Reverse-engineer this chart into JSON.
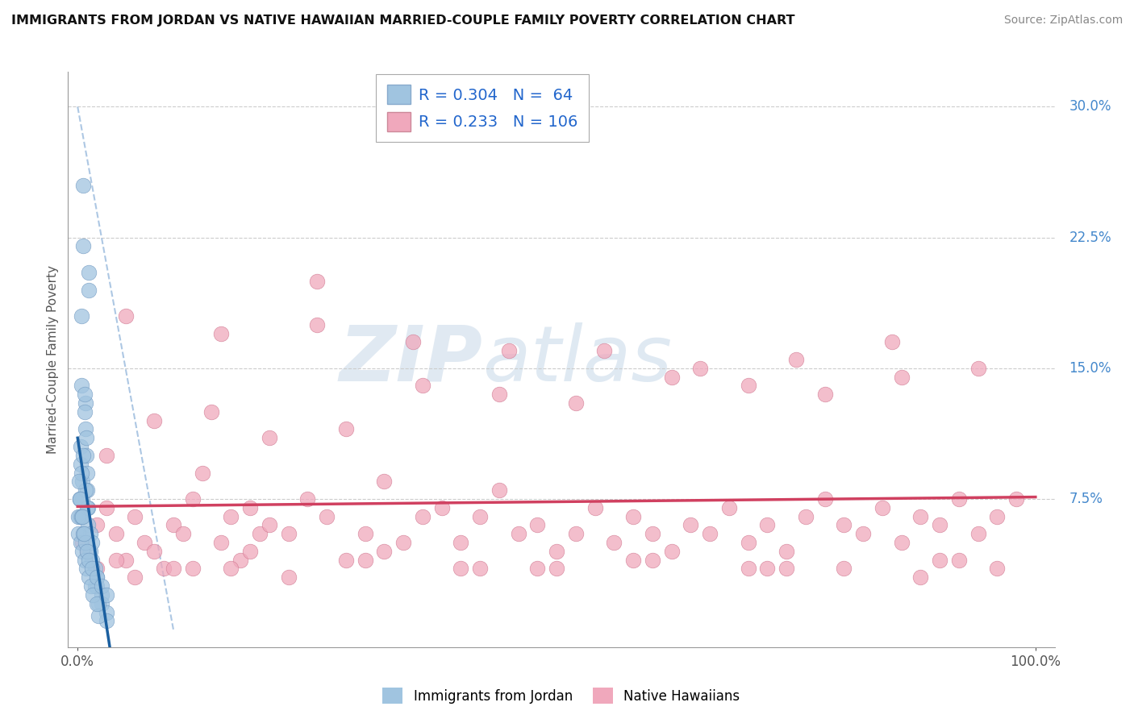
{
  "title": "IMMIGRANTS FROM JORDAN VS NATIVE HAWAIIAN MARRIED-COUPLE FAMILY POVERTY CORRELATION CHART",
  "source": "Source: ZipAtlas.com",
  "ylabel": "Married-Couple Family Poverty",
  "blue_R": 0.304,
  "blue_N": 64,
  "pink_R": 0.233,
  "pink_N": 106,
  "blue_color": "#a0c4e0",
  "pink_color": "#f0a8bc",
  "blue_edge_color": "#7098c0",
  "pink_edge_color": "#d07890",
  "blue_line_color": "#1a5fa0",
  "pink_line_color": "#d04060",
  "watermark_zip": "ZIP",
  "watermark_atlas": "atlas",
  "blue_scatter_x": [
    0.6,
    0.6,
    1.2,
    1.2,
    0.4,
    0.4,
    0.8,
    0.8,
    0.3,
    0.3,
    0.5,
    0.5,
    0.7,
    0.7,
    0.9,
    0.9,
    1.0,
    1.0,
    1.1,
    1.1,
    0.2,
    0.2,
    1.3,
    1.3,
    0.6,
    0.4,
    0.8,
    1.0,
    1.5,
    1.5,
    2.0,
    2.0,
    2.5,
    2.5,
    3.0,
    3.0,
    1.8,
    1.8,
    2.2,
    2.2,
    0.1,
    0.1,
    0.3,
    0.5,
    0.7,
    0.9,
    1.2,
    1.4,
    1.6,
    2.0,
    0.2,
    0.4,
    0.6,
    0.8,
    1.0,
    1.2,
    1.5,
    2.0,
    2.5,
    3.0,
    0.15,
    0.25,
    0.45,
    0.65
  ],
  "blue_scatter_y": [
    25.5,
    22.0,
    20.5,
    19.5,
    18.0,
    14.0,
    13.0,
    11.5,
    10.5,
    9.5,
    8.5,
    7.5,
    13.5,
    12.5,
    11.0,
    10.0,
    9.0,
    8.0,
    7.0,
    6.0,
    7.5,
    6.5,
    5.5,
    4.5,
    10.0,
    9.0,
    8.0,
    7.0,
    5.0,
    4.0,
    3.0,
    2.5,
    2.0,
    1.5,
    1.0,
    0.5,
    3.5,
    2.5,
    1.5,
    0.8,
    6.5,
    5.5,
    5.0,
    4.5,
    4.0,
    3.5,
    3.0,
    2.5,
    2.0,
    1.5,
    7.5,
    6.5,
    5.5,
    5.0,
    4.5,
    4.0,
    3.5,
    3.0,
    2.5,
    2.0,
    8.5,
    7.5,
    6.5,
    5.5
  ],
  "pink_scatter_x": [
    0.5,
    1.0,
    2.0,
    3.0,
    4.0,
    5.0,
    6.0,
    7.0,
    8.0,
    9.0,
    10.0,
    11.0,
    12.0,
    13.0,
    15.0,
    16.0,
    17.0,
    18.0,
    19.0,
    20.0,
    22.0,
    24.0,
    25.0,
    26.0,
    28.0,
    30.0,
    32.0,
    34.0,
    36.0,
    38.0,
    40.0,
    42.0,
    44.0,
    46.0,
    48.0,
    50.0,
    52.0,
    54.0,
    56.0,
    58.0,
    60.0,
    62.0,
    64.0,
    66.0,
    68.0,
    70.0,
    72.0,
    74.0,
    76.0,
    78.0,
    80.0,
    82.0,
    84.0,
    86.0,
    88.0,
    90.0,
    92.0,
    94.0,
    96.0,
    98.0,
    3.0,
    8.0,
    14.0,
    20.0,
    28.0,
    36.0,
    44.0,
    52.0,
    62.0,
    70.0,
    78.0,
    86.0,
    94.0,
    15.0,
    35.0,
    55.0,
    75.0,
    5.0,
    25.0,
    45.0,
    65.0,
    85.0,
    4.0,
    12.0,
    22.0,
    32.0,
    42.0,
    60.0,
    80.0,
    90.0,
    6.0,
    16.0,
    30.0,
    50.0,
    70.0,
    88.0,
    2.0,
    18.0,
    40.0,
    58.0,
    74.0,
    92.0,
    10.0,
    48.0,
    72.0,
    96.0
  ],
  "pink_scatter_y": [
    5.0,
    4.5,
    6.0,
    7.0,
    5.5,
    4.0,
    6.5,
    5.0,
    4.5,
    3.5,
    6.0,
    5.5,
    7.5,
    9.0,
    5.0,
    6.5,
    4.0,
    7.0,
    5.5,
    6.0,
    5.5,
    7.5,
    20.0,
    6.5,
    4.0,
    5.5,
    8.5,
    5.0,
    6.5,
    7.0,
    5.0,
    6.5,
    8.0,
    5.5,
    6.0,
    4.5,
    5.5,
    7.0,
    5.0,
    6.5,
    5.5,
    4.5,
    6.0,
    5.5,
    7.0,
    5.0,
    6.0,
    4.5,
    6.5,
    7.5,
    6.0,
    5.5,
    7.0,
    5.0,
    6.5,
    6.0,
    7.5,
    5.5,
    6.5,
    7.5,
    10.0,
    12.0,
    12.5,
    11.0,
    11.5,
    14.0,
    13.5,
    13.0,
    14.5,
    14.0,
    13.5,
    14.5,
    15.0,
    17.0,
    16.5,
    16.0,
    15.5,
    18.0,
    17.5,
    16.0,
    15.0,
    16.5,
    4.0,
    3.5,
    3.0,
    4.5,
    3.5,
    4.0,
    3.5,
    4.0,
    3.0,
    3.5,
    4.0,
    3.5,
    3.5,
    3.0,
    3.5,
    4.5,
    3.5,
    4.0,
    3.5,
    4.0,
    3.5,
    3.5,
    3.5,
    3.5
  ]
}
